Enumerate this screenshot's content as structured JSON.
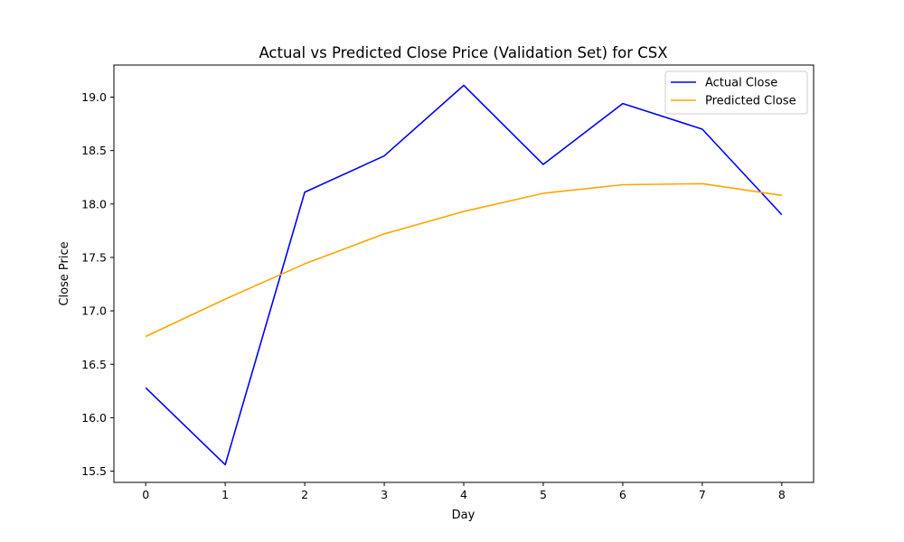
{
  "chart_data": {
    "type": "line",
    "title": "Actual vs Predicted Close Price (Validation Set) for CSX",
    "xlabel": "Day",
    "ylabel": "Close Price",
    "x": [
      0,
      1,
      2,
      3,
      4,
      5,
      6,
      7,
      8
    ],
    "xlim": [
      -0.4,
      8.4
    ],
    "ylim": [
      15.395,
      19.3
    ],
    "xticks": [
      0,
      1,
      2,
      3,
      4,
      5,
      6,
      7,
      8
    ],
    "yticks": [
      15.5,
      16.0,
      16.5,
      17.0,
      17.5,
      18.0,
      18.5,
      19.0
    ],
    "ytick_labels": [
      "15.5",
      "16.0",
      "16.5",
      "17.0",
      "17.5",
      "18.0",
      "18.5",
      "19.0"
    ],
    "grid": false,
    "legend_position": "top-right",
    "series": [
      {
        "name": "Actual Close",
        "color": "#0000ff",
        "values": [
          16.28,
          15.56,
          18.11,
          18.45,
          19.11,
          18.37,
          18.94,
          18.7,
          17.9
        ]
      },
      {
        "name": "Predicted Close",
        "color": "#ffa500",
        "values": [
          16.76,
          17.11,
          17.44,
          17.72,
          17.93,
          18.1,
          18.18,
          18.19,
          18.08
        ]
      }
    ]
  }
}
